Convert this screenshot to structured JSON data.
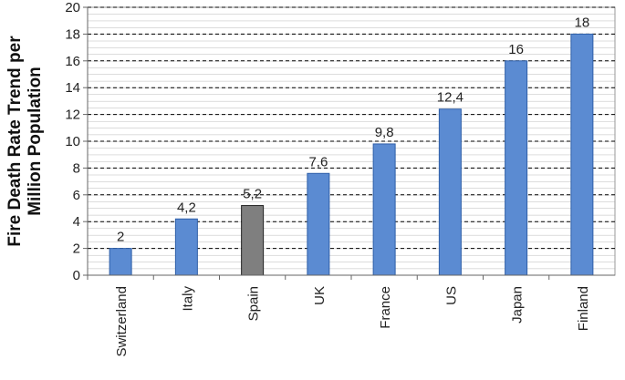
{
  "chart_data": {
    "type": "bar",
    "ylabel": [
      "Fire Death Rate Trend per",
      "Million  Population"
    ],
    "categories": [
      "Switzerland",
      "Italy",
      "Spain",
      "UK",
      "France",
      "US",
      "Japan",
      "Finland"
    ],
    "values": [
      2,
      4.2,
      5.2,
      7.6,
      9.8,
      12.4,
      16,
      18
    ],
    "value_labels": [
      "2",
      "4,2",
      "5,2",
      "7,6",
      "9,8",
      "12,4",
      "16",
      "18"
    ],
    "colors": [
      "#5b8bd2",
      "#5b8bd2",
      "#7f7f7f",
      "#5b8bd2",
      "#5b8bd2",
      "#5b8bd2",
      "#5b8bd2",
      "#5b8bd2"
    ],
    "ylim": [
      0,
      20
    ],
    "yticks": [
      0,
      2,
      4,
      6,
      8,
      10,
      12,
      14,
      16,
      18,
      20
    ],
    "grid": true
  }
}
